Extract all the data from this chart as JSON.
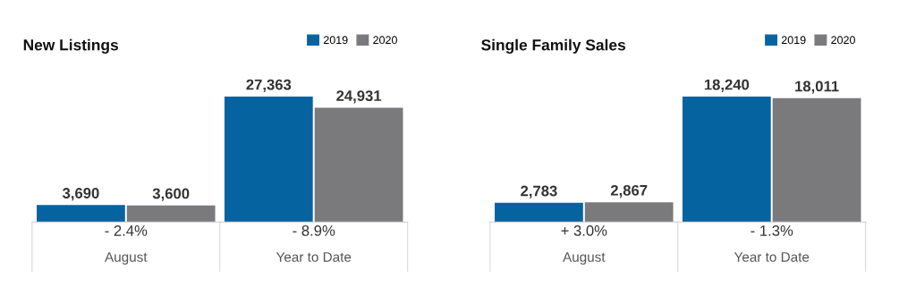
{
  "chart_data": [
    {
      "type": "bar",
      "title": "New Listings",
      "categories": [
        "August",
        "Year to Date"
      ],
      "legend": "top right",
      "series": [
        {
          "name": "2019",
          "color": "#0563a0",
          "values": [
            3690,
            27363
          ],
          "value_labels": [
            "3,690",
            "27,363"
          ]
        },
        {
          "name": "2020",
          "color": "#7a797c",
          "values": [
            3600,
            24931
          ],
          "value_labels": [
            "3,600",
            "24,931"
          ]
        }
      ],
      "annotations": [
        "- 2.4%",
        "- 8.9%"
      ]
    },
    {
      "type": "bar",
      "title": "Single Family Sales",
      "categories": [
        "August",
        "Year to Date"
      ],
      "legend": "top right",
      "series": [
        {
          "name": "2019",
          "color": "#0563a0",
          "values": [
            2783,
            18240
          ],
          "value_labels": [
            "2,783",
            "18,240"
          ]
        },
        {
          "name": "2020",
          "color": "#7a797c",
          "values": [
            2867,
            18011
          ],
          "value_labels": [
            "2,867",
            "18,011"
          ]
        }
      ],
      "annotations": [
        "+ 3.0%",
        "- 1.3%"
      ]
    }
  ]
}
